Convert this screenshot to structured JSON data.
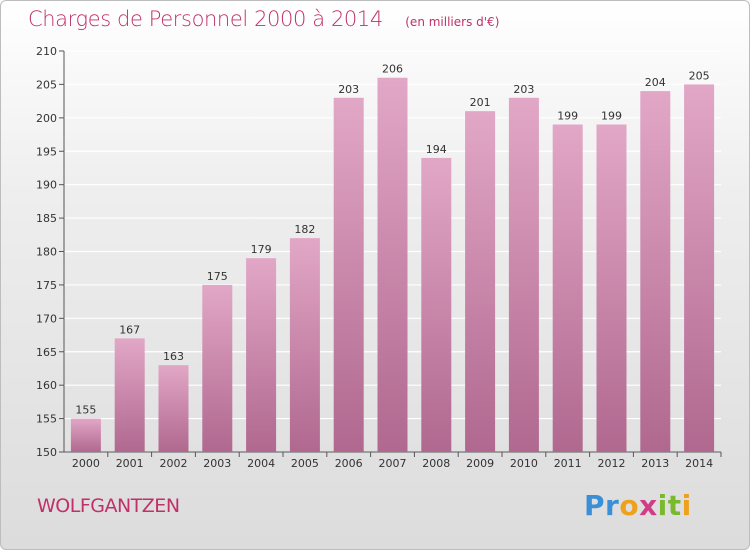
{
  "chart_data": {
    "type": "bar",
    "title": "Charges de Personnel 2000 à 2014",
    "subtitle": "(en milliers d'€)",
    "categories": [
      "2000",
      "2001",
      "2002",
      "2003",
      "2004",
      "2005",
      "2006",
      "2007",
      "2008",
      "2009",
      "2010",
      "2011",
      "2012",
      "2013",
      "2014"
    ],
    "values": [
      155,
      167,
      163,
      175,
      179,
      182,
      203,
      206,
      194,
      201,
      203,
      199,
      199,
      204,
      205
    ],
    "ylim": [
      150,
      210
    ],
    "yticks": [
      150,
      155,
      160,
      165,
      170,
      175,
      180,
      185,
      190,
      195,
      200,
      205,
      210
    ],
    "grid": true,
    "bar_color": "#d48aad"
  },
  "footer": {
    "town": "WOLFGANTZEN",
    "logo_letters": [
      "P",
      "r",
      "o",
      "x",
      "i",
      "t",
      "i"
    ],
    "logo_colors": [
      "#3b8fd6",
      "#3b8fd6",
      "#f0a11c",
      "#d23c87",
      "#7ab82e",
      "#7ab82e",
      "#f0a11c"
    ]
  }
}
